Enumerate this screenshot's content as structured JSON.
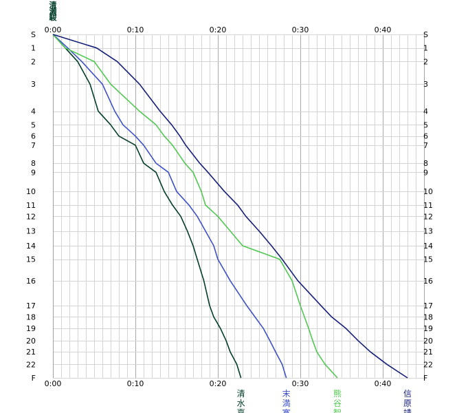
{
  "chart_data": {
    "type": "line",
    "top_name": "清瀬駿",
    "x_ticks": [
      {
        "value": 0,
        "label": "0:00"
      },
      {
        "value": 10,
        "label": "0:10"
      },
      {
        "value": 20,
        "label": "0:20"
      },
      {
        "value": 30,
        "label": "0:30"
      },
      {
        "value": 40,
        "label": "0:40"
      }
    ],
    "xlim": [
      0,
      45
    ],
    "y_ticks": [
      "S",
      "1",
      "2",
      "3",
      "4",
      "5",
      "6",
      "7",
      "8",
      "9",
      "10",
      "11",
      "12",
      "13",
      "14",
      "15",
      "16",
      "17",
      "18",
      "19",
      "20",
      "21",
      "22",
      "F"
    ],
    "y_cum": [
      0,
      1.2,
      2.4,
      4.4,
      6.8,
      8.0,
      9.0,
      9.8,
      11.4,
      12.2,
      13.9,
      15.1,
      16.1,
      17.4,
      18.7,
      19.9,
      21.8,
      24.0,
      25.0,
      26.0,
      27.1,
      28.1,
      29.2,
      30.4
    ],
    "series": [
      {
        "name": "清水嘉",
        "color": "#003c28",
        "x": [
          0,
          1.5,
          3.0,
          4.5,
          5.5,
          7.0,
          8.0,
          10.0,
          11.0,
          12.5,
          13.5,
          14.5,
          15.5,
          16.3,
          17.0,
          17.5,
          18.3,
          19.0,
          19.5,
          20.3,
          21.0,
          21.5,
          22.3,
          22.8
        ],
        "y": [
          0,
          1.2,
          2.4,
          4.4,
          6.8,
          8.0,
          9.0,
          9.8,
          11.4,
          12.2,
          13.9,
          15.1,
          16.1,
          17.4,
          18.7,
          19.9,
          21.8,
          24.0,
          25.0,
          26.0,
          27.1,
          28.1,
          29.2,
          30.4
        ]
      },
      {
        "name": "末満寛",
        "color": "#3c50c8",
        "x": [
          0,
          1.8,
          3.5,
          6.0,
          7.5,
          8.5,
          10.0,
          11.0,
          12.5,
          14.0,
          15.0,
          16.5,
          17.5,
          18.5,
          19.5,
          20.0,
          21.5,
          23.5,
          24.5,
          25.5,
          26.3,
          27.0,
          27.8,
          28.3
        ],
        "y": [
          0,
          1.2,
          2.4,
          4.4,
          6.8,
          8.0,
          9.0,
          9.8,
          11.4,
          12.2,
          13.9,
          15.1,
          16.1,
          17.4,
          18.7,
          19.9,
          21.8,
          24.0,
          25.0,
          26.0,
          27.1,
          28.1,
          29.2,
          30.4
        ]
      },
      {
        "name": "熊谷智",
        "color": "#50c850",
        "x": [
          0,
          1.5,
          5.0,
          7.0,
          10.5,
          12.5,
          13.5,
          14.5,
          16.0,
          17.0,
          18.0,
          18.5,
          20.0,
          21.5,
          23.0,
          27.5,
          29.0,
          30.0,
          30.5,
          31.0,
          31.5,
          32.0,
          33.0,
          34.5
        ],
        "y": [
          0,
          1.2,
          2.4,
          4.4,
          6.8,
          8.0,
          9.0,
          9.8,
          11.4,
          12.2,
          13.9,
          15.1,
          16.1,
          17.4,
          18.7,
          19.9,
          21.8,
          24.0,
          25.0,
          26.0,
          27.1,
          28.1,
          29.2,
          30.4
        ]
      },
      {
        "name": "信原靖",
        "color": "#141e78",
        "x": [
          0,
          5.3,
          7.8,
          10.5,
          13.0,
          14.4,
          15.4,
          16.1,
          17.8,
          18.8,
          20.8,
          22.4,
          23.4,
          25.0,
          26.5,
          27.8,
          29.7,
          32.5,
          33.8,
          35.5,
          37.0,
          38.5,
          40.5,
          43.0
        ],
        "y": [
          0,
          1.2,
          2.4,
          4.4,
          6.8,
          8.0,
          9.0,
          9.8,
          11.4,
          12.2,
          13.9,
          15.1,
          16.1,
          17.4,
          18.7,
          19.9,
          21.8,
          24.0,
          25.0,
          26.0,
          27.1,
          28.1,
          29.2,
          30.4
        ]
      }
    ],
    "grid": true,
    "legend": "below-line-ends"
  }
}
